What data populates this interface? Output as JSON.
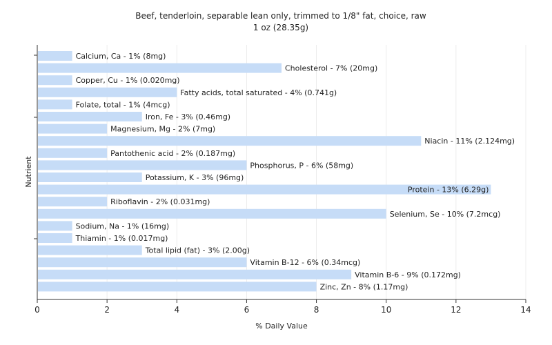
{
  "chart_data": {
    "type": "bar",
    "orientation": "horizontal",
    "title": "Beef, tenderloin, separable lean only, trimmed to 1/8\" fat, choice, raw",
    "subtitle": "1 oz (28.35g)",
    "xlabel": "% Daily Value",
    "ylabel": "Nutrient",
    "xlim": [
      0,
      14
    ],
    "xticks": [
      0,
      2,
      4,
      6,
      8,
      10,
      12,
      14
    ],
    "grid": true,
    "bar_color": "#c6dcf7",
    "categories": [
      "Calcium, Ca",
      "Cholesterol",
      "Copper, Cu",
      "Fatty acids, total saturated",
      "Folate, total",
      "Iron, Fe",
      "Magnesium, Mg",
      "Niacin",
      "Pantothenic acid",
      "Phosphorus, P",
      "Potassium, K",
      "Protein",
      "Riboflavin",
      "Selenium, Se",
      "Sodium, Na",
      "Thiamin",
      "Total lipid (fat)",
      "Vitamin B-12",
      "Vitamin B-6",
      "Zinc, Zn"
    ],
    "values": [
      1,
      7,
      1,
      4,
      1,
      3,
      2,
      11,
      2,
      6,
      3,
      13,
      2,
      10,
      1,
      1,
      3,
      6,
      9,
      8
    ],
    "labels": [
      "Calcium, Ca - 1% (8mg)",
      "Cholesterol - 7% (20mg)",
      "Copper, Cu - 1% (0.020mg)",
      "Fatty acids, total saturated - 4% (0.741g)",
      "Folate, total - 1% (4mcg)",
      "Iron, Fe - 3% (0.46mg)",
      "Magnesium, Mg - 2% (7mg)",
      "Niacin - 11% (2.124mg)",
      "Pantothenic acid - 2% (0.187mg)",
      "Phosphorus, P - 6% (58mg)",
      "Potassium, K - 3% (96mg)",
      "Protein - 13% (6.29g)",
      "Riboflavin - 2% (0.031mg)",
      "Selenium, Se - 10% (7.2mcg)",
      "Sodium, Na - 1% (16mg)",
      "Thiamin - 1% (0.017mg)",
      "Total lipid (fat) - 3% (2.00g)",
      "Vitamin B-12 - 6% (0.34mcg)",
      "Vitamin B-6 - 9% (0.172mg)",
      "Zinc, Zn - 8% (1.17mg)"
    ]
  }
}
